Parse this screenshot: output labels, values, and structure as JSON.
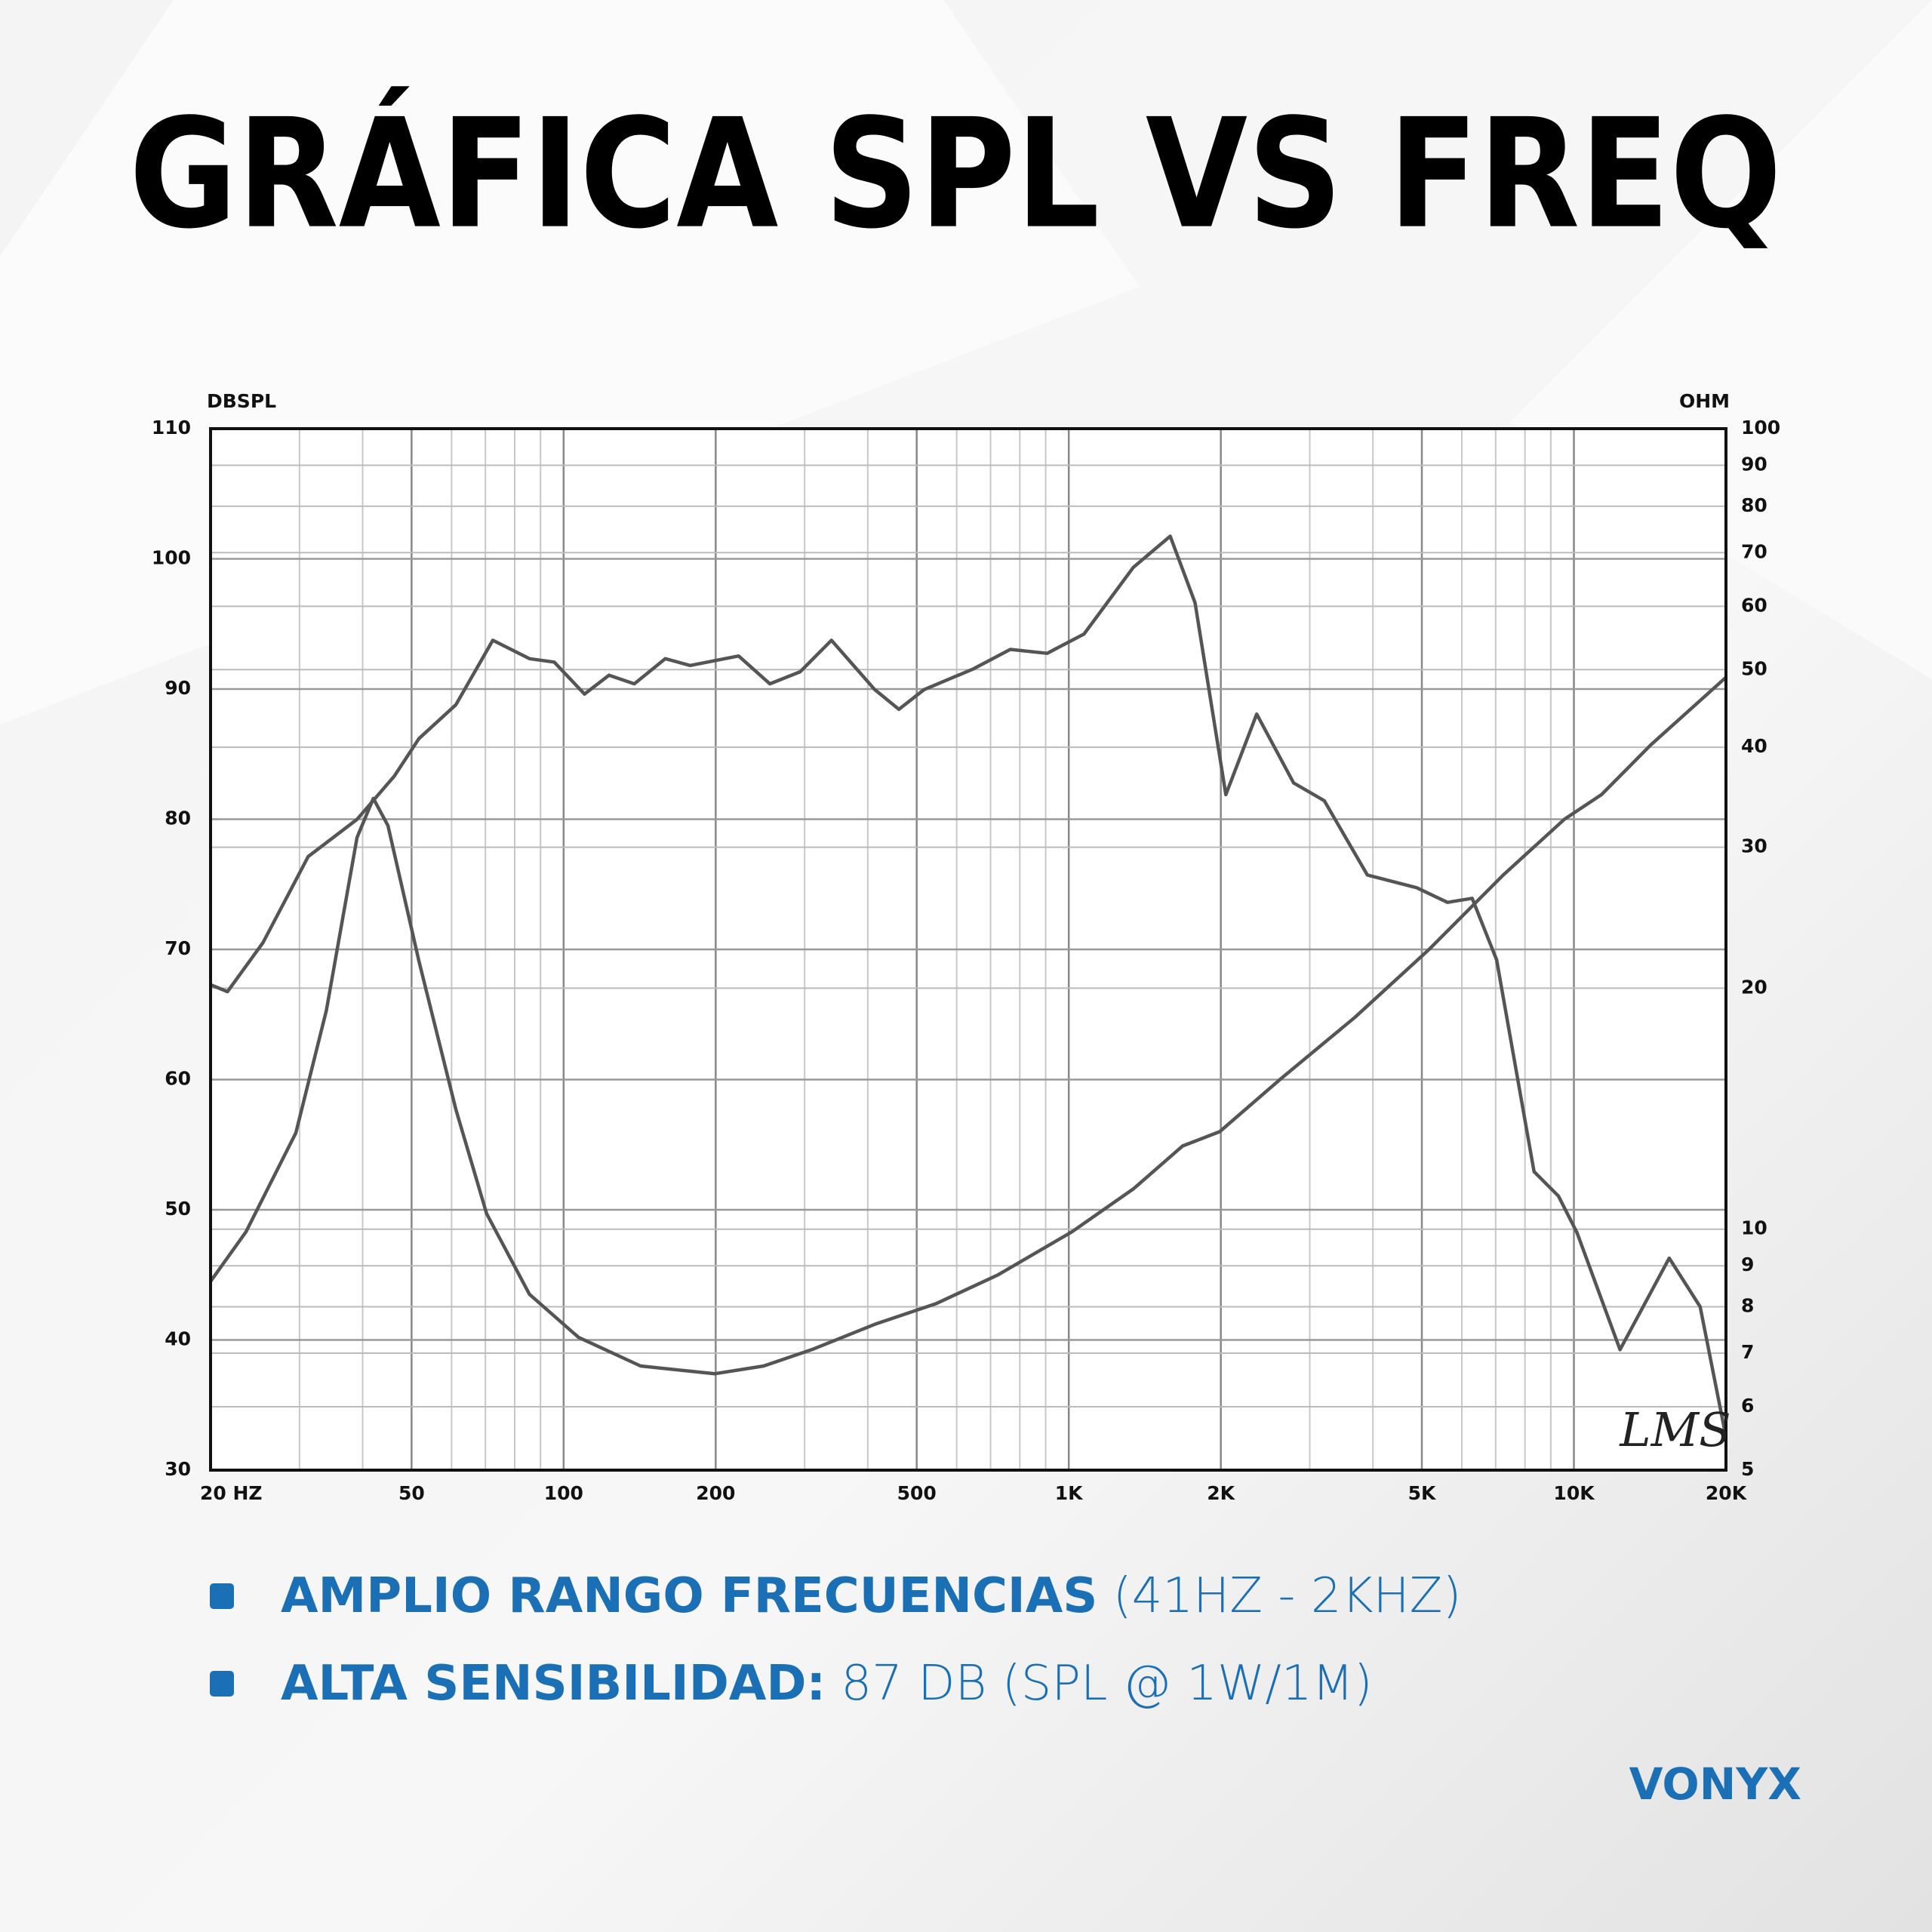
{
  "chart_data": {
    "type": "line",
    "title": "GRÁFICA SPL VS FREQ",
    "y_label": "DBSPL",
    "y2_label": "OHM",
    "annotation": "LMS",
    "xscale": "log",
    "xlim": [
      20,
      20000
    ],
    "xticks": [
      {
        "value": 20,
        "label": "20 HZ"
      },
      50,
      100,
      200,
      500,
      {
        "value": 1000,
        "label": "1K"
      },
      {
        "value": 2000,
        "label": "2K"
      },
      {
        "value": 5000,
        "label": "5K"
      },
      {
        "value": 10000,
        "label": "10K"
      },
      {
        "value": 20000,
        "label": "20K"
      }
    ],
    "ylim": [
      30,
      110
    ],
    "yticks": [
      30,
      40,
      50,
      60,
      70,
      80,
      90,
      100,
      110
    ],
    "y2scale": "log",
    "y2lim": [
      5,
      100
    ],
    "y2ticks": [
      5,
      6,
      7,
      8,
      9,
      10,
      20,
      30,
      40,
      50,
      60,
      70,
      80,
      90,
      100
    ],
    "grid": true,
    "series": [
      {
        "color": "#555555",
        "x": [
          20,
          23.5,
          29.5,
          33.9,
          39,
          42,
          44.9,
          51.7,
          61.2,
          70.4,
          85.6,
          107,
          142,
          199,
          249,
          312,
          413,
          547,
          724,
          1014,
          1342,
          1680,
          1990,
          2636,
          3690,
          5168,
          7240,
          9580,
          11350,
          14190,
          20000
        ],
        "values": [
          44.5,
          48.3,
          55.9,
          65.3,
          78.6,
          81.6,
          79.5,
          69.1,
          57.7,
          49.7,
          43.5,
          40.2,
          38,
          37.4,
          38,
          39.3,
          41.2,
          42.8,
          45,
          48.3,
          51.6,
          54.9,
          56,
          60.1,
          64.8,
          70,
          75.7,
          80,
          81.9,
          85.7,
          90.9
        ]
      },
      {
        "color": "#555555",
        "axis": "y2",
        "x": [
          20,
          21.6,
          25.4,
          31.2,
          39,
          46.2,
          51.7,
          61.2,
          72.4,
          85.6,
          95.8,
          110,
          123,
          138,
          159,
          178,
          222,
          256,
          294,
          339,
          413,
          461,
          517,
          647,
          766,
          906,
          1072,
          1342,
          1588,
          1778,
          2046,
          2355,
          2787,
          3205,
          3900,
          4886,
          5620,
          6290,
          7030,
          8340,
          9320,
          10140,
          12340,
          15440,
          17780,
          20000
        ],
        "values": [
          20.2,
          19.8,
          22.8,
          29.2,
          32.5,
          36.8,
          41,
          45.2,
          54.4,
          51.6,
          51.1,
          46.6,
          49.2,
          48,
          51.6,
          50.6,
          52,
          48,
          49.7,
          54.4,
          47.2,
          44.6,
          47.2,
          50.1,
          53,
          52.4,
          55.4,
          67.1,
          73.4,
          60.6,
          34.9,
          44,
          36.1,
          34.3,
          27.7,
          26.7,
          25.6,
          25.9,
          21.7,
          11.8,
          11,
          9.9,
          7.07,
          9.2,
          8,
          5.5
        ]
      }
    ]
  },
  "bullets": [
    {
      "bold": "AMPLIO RANGO FRECUENCIAS",
      "text": " (41HZ - 2KHZ)"
    },
    {
      "bold": "ALTA SENSIBILIDAD:",
      "text": " 87 DB (SPL @ 1W/1M)"
    }
  ],
  "logo": "VONYX"
}
